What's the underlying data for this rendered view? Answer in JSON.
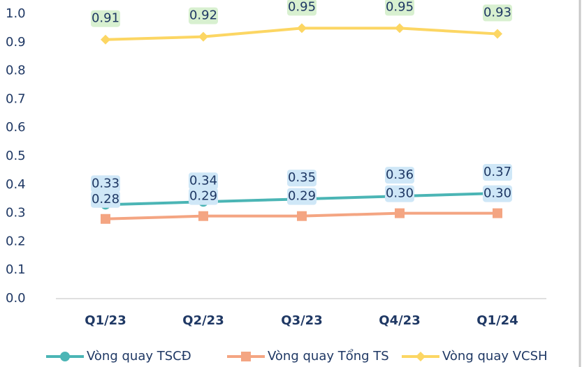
{
  "chart_data": {
    "type": "line",
    "categories": [
      "Q1/23",
      "Q2/23",
      "Q3/23",
      "Q4/23",
      "Q1/24"
    ],
    "series": [
      {
        "name": "Vòng quay TSCĐ",
        "color": "#4bb5b5",
        "marker": "circle",
        "values": [
          0.33,
          0.34,
          0.35,
          0.36,
          0.37
        ]
      },
      {
        "name": "Vòng quay Tổng TS",
        "color": "#f4a582",
        "marker": "square",
        "values": [
          0.28,
          0.29,
          0.29,
          0.3,
          0.3
        ],
        "value_labels": [
          "0.28",
          "0.29",
          "0.29",
          "0.30",
          "0.30"
        ]
      },
      {
        "name": "Vòng quay VCSH",
        "color": "#fcd663",
        "marker": "diamond",
        "values": [
          0.91,
          0.92,
          0.95,
          0.95,
          0.93
        ]
      }
    ],
    "ylim": [
      0,
      1
    ],
    "yticks": [
      {
        "value": 0,
        "label": "0.0"
      },
      0.1,
      0.2,
      0.3,
      0.4,
      0.5,
      0.6,
      0.7,
      0.8,
      0.9,
      {
        "value": 1,
        "label": "1.0"
      }
    ],
    "legend": "bottom"
  }
}
